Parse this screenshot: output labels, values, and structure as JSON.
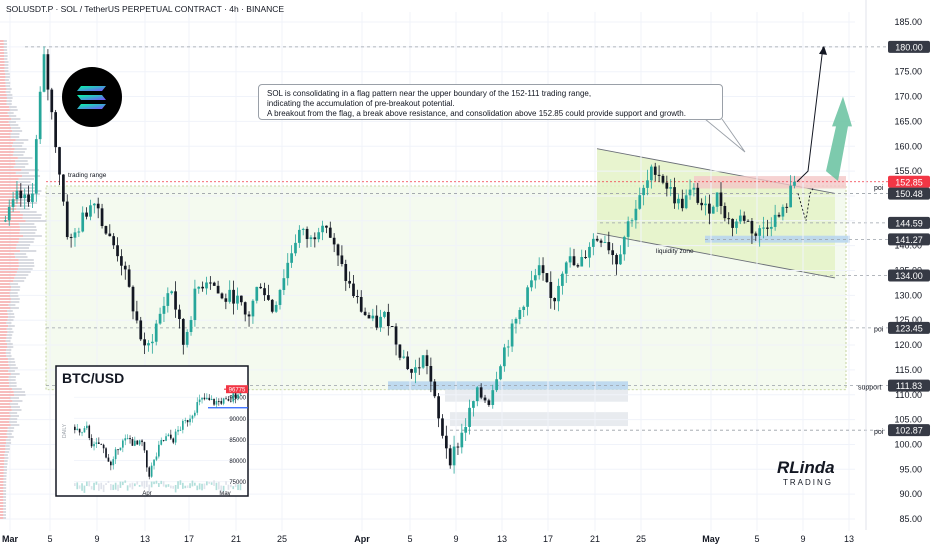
{
  "header": {
    "title": "SOLUSDT.P · SOL / TetherUS PERPETUAL CONTRACT · 4h · BINANCE"
  },
  "callout": {
    "lines": [
      "SOL is consolidating in a flag pattern near the upper boundary of the 152-111 trading range,",
      "indicating the accumulation of pre-breakout potential.",
      "A breakout from the flag, a break above resistance, and consolidation above 152.85 could provide support and growth."
    ]
  },
  "annotations": {
    "trading_range": "trading range",
    "liquidity_zone": "liquidity zone",
    "poi_top": "poi",
    "poi_mid": "poi",
    "poi_low": "poi",
    "support": "support"
  },
  "brand": {
    "line1": "RLinda",
    "line2": "TRADING"
  },
  "colors": {
    "bull": "#26a69a",
    "bear": "#131722",
    "accent_red": "#f23645",
    "dark_label": "#363a45"
  },
  "chart_data": [
    {
      "type": "candlestick",
      "title": "SOLUSDT.P · SOL / TetherUS PERPETUAL CONTRACT · 4h · BINANCE",
      "symbol": "SOLUSDT.P",
      "timeframe": "4h",
      "ylim": [
        83,
        187
      ],
      "y_ticks": [
        85,
        90,
        95,
        100,
        105,
        110,
        115,
        120,
        125,
        130,
        135,
        140,
        145,
        150,
        155,
        160,
        165,
        170,
        175,
        180,
        185
      ],
      "x_ticks": [
        "Mar",
        "5",
        "9",
        "13",
        "17",
        "21",
        "25",
        "Apr",
        "5",
        "9",
        "13",
        "17",
        "21",
        "25",
        "May",
        "5",
        "9",
        "13"
      ],
      "price_labels": [
        {
          "value": "180.00",
          "style": "dark"
        },
        {
          "value": "152.85",
          "style": "red"
        },
        {
          "value": "150.48",
          "style": "dark"
        },
        {
          "value": "144.59",
          "style": "dark"
        },
        {
          "value": "141.27",
          "style": "dark"
        },
        {
          "value": "134.00",
          "style": "dark"
        },
        {
          "value": "123.45",
          "style": "dark"
        },
        {
          "value": "111.83",
          "style": "dark"
        },
        {
          "value": "102.87",
          "style": "dark"
        }
      ],
      "key_levels": {
        "resistance": 180.0,
        "current_price": 152.85,
        "flag_high": 150.48,
        "flag_support": 144.59,
        "liquidity_zone": 141.27,
        "range_low_shelf": 134.0,
        "poi_mid": 123.45,
        "support": 111.83,
        "poi_low": 102.87
      },
      "trading_range": [
        111,
        152
      ],
      "close_path": [
        [
          0,
          145
        ],
        [
          1,
          150
        ],
        [
          2,
          148
        ],
        [
          3,
          178
        ],
        [
          4,
          160
        ],
        [
          5,
          140
        ],
        [
          6,
          145
        ],
        [
          7,
          150
        ],
        [
          8,
          142
        ],
        [
          9,
          138
        ],
        [
          10,
          128
        ],
        [
          11,
          118
        ],
        [
          12,
          125
        ],
        [
          13,
          132
        ],
        [
          14,
          120
        ],
        [
          15,
          131
        ],
        [
          16,
          134
        ],
        [
          17,
          129
        ],
        [
          18,
          130
        ],
        [
          19,
          125
        ],
        [
          20,
          133
        ],
        [
          21,
          127
        ],
        [
          22,
          135
        ],
        [
          23,
          143
        ],
        [
          24,
          141
        ],
        [
          25,
          146
        ],
        [
          26,
          138
        ],
        [
          27,
          132
        ],
        [
          28,
          127
        ],
        [
          29,
          124
        ],
        [
          30,
          126
        ],
        [
          31,
          119
        ],
        [
          32,
          114
        ],
        [
          33,
          118
        ],
        [
          34,
          105
        ],
        [
          35,
          97
        ],
        [
          36,
          103
        ],
        [
          37,
          110
        ],
        [
          38,
          109
        ],
        [
          39,
          118
        ],
        [
          40,
          124
        ],
        [
          41,
          131
        ],
        [
          42,
          135
        ],
        [
          43,
          128
        ],
        [
          44,
          138
        ],
        [
          45,
          135
        ],
        [
          46,
          141
        ],
        [
          47,
          142
        ],
        [
          48,
          137
        ],
        [
          49,
          145
        ],
        [
          50,
          150
        ],
        [
          51,
          156
        ],
        [
          52,
          152
        ],
        [
          53,
          148
        ],
        [
          54,
          151
        ],
        [
          55,
          147
        ],
        [
          56,
          150
        ],
        [
          57,
          144
        ],
        [
          58,
          146
        ],
        [
          59,
          142
        ],
        [
          60,
          145
        ],
        [
          61,
          146
        ],
        [
          62,
          152.85
        ]
      ],
      "projection": [
        [
          62,
          152.85
        ],
        [
          63,
          155
        ],
        [
          64,
          180
        ]
      ]
    },
    {
      "type": "candlestick",
      "title": "BTC/USD",
      "ylim": [
        73500,
        100500
      ],
      "y_ticks": [
        75000,
        80000,
        85000,
        90000,
        95000
      ],
      "x_ticks": [
        "Apr",
        "May"
      ],
      "axis_label": "DAILY",
      "price_labels": [
        "96775"
      ],
      "close_path": [
        [
          0,
          88000
        ],
        [
          1,
          86000
        ],
        [
          2,
          87500
        ],
        [
          3,
          83000
        ],
        [
          4,
          84000
        ],
        [
          5,
          82000
        ],
        [
          6,
          78000
        ],
        [
          7,
          83500
        ],
        [
          8,
          84500
        ],
        [
          9,
          85000
        ],
        [
          10,
          83500
        ],
        [
          11,
          84000
        ],
        [
          12,
          76500
        ],
        [
          13,
          80000
        ],
        [
          14,
          84000
        ],
        [
          15,
          85500
        ],
        [
          16,
          85000
        ],
        [
          17,
          87500
        ],
        [
          18,
          89000
        ],
        [
          19,
          91000
        ],
        [
          20,
          93500
        ],
        [
          21,
          94500
        ],
        [
          22,
          94000
        ],
        [
          23,
          93800
        ],
        [
          24,
          94200
        ],
        [
          25,
          93500
        ],
        [
          26,
          95500
        ],
        [
          27,
          96775
        ]
      ]
    }
  ]
}
